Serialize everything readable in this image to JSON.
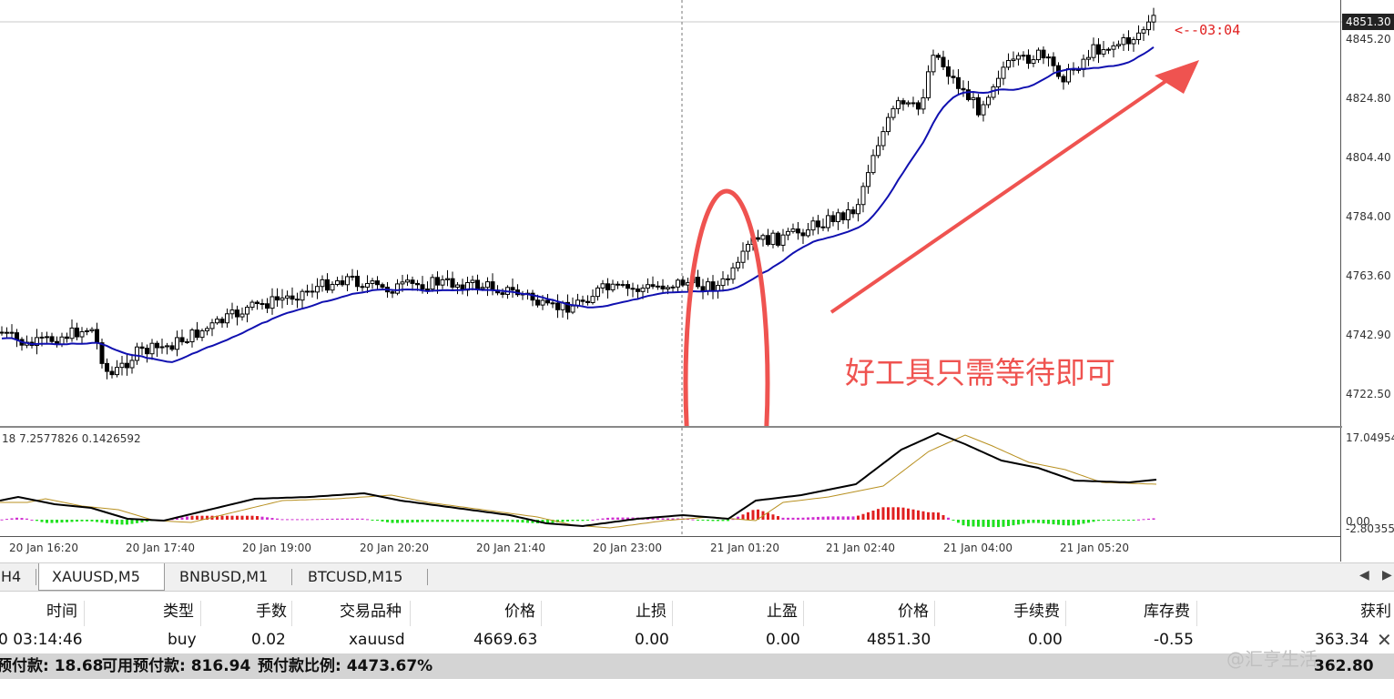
{
  "symbol": "XAUUSD,M5",
  "colors": {
    "bull_body": "#ffffff",
    "bear_body": "#000000",
    "ma_line": "#1010b0",
    "osc_main": "#000000",
    "osc_signal": "#b89020",
    "hist_pos_red": "#e02020",
    "hist_pos_magenta": "#d030d0",
    "hist_neg_green": "#20e020",
    "annotation": "#ef5350"
  },
  "main_chart": {
    "current_price": "4851.30",
    "price_axis_labels": [
      "4845.20",
      "4824.80",
      "4804.40",
      "4784.00",
      "4763.60",
      "4742.90",
      "4722.50"
    ],
    "time_axis_labels": [
      "20 Jan 16:20",
      "20 Jan 17:40",
      "20 Jan 19:00",
      "20 Jan 20:20",
      "20 Jan 21:40",
      "20 Jan 23:00",
      "21 Jan 01:20",
      "21 Jan 02:40",
      "21 Jan 04:00",
      "21 Jan 05:20"
    ],
    "countdown": "<--03:04",
    "annotation_text": "好工具只需等待即可"
  },
  "indicator": {
    "params_text": "18 7.2577826 0.1426592",
    "axis_top": "17.04954",
    "axis_zero": "0.00",
    "axis_bottom": "-2.80355"
  },
  "tabs": [
    "H4",
    "XAUUSD,M5",
    "BNBUSD,M1",
    "BTCUSD,M15"
  ],
  "active_tab": "XAUUSD,M5",
  "table": {
    "headers": [
      "时间",
      "类型",
      "手数",
      "交易品种",
      "价格",
      "止损",
      "止盈",
      "价格",
      "手续费",
      "库存费",
      "获利"
    ],
    "row": [
      "0 03:14:46",
      "buy",
      "0.02",
      "xauusd",
      "4669.63",
      "0.00",
      "0.00",
      "4851.30",
      "0.00",
      "-0.55",
      "363.34"
    ]
  },
  "summary": {
    "margin": "预付款: 18.68",
    "free_margin": "可用预付款: 816.94",
    "margin_level": "预付款比例: 4473.67%",
    "total_profit": "362.80"
  },
  "watermark": "@汇亨生活"
}
